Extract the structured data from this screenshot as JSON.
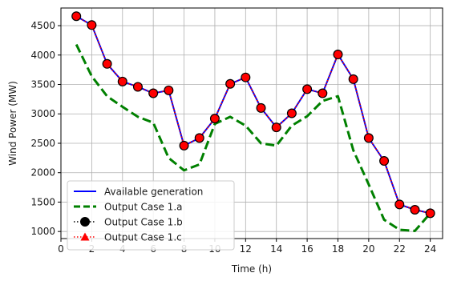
{
  "chart_data": {
    "type": "line",
    "xlabel": "Time (h)",
    "ylabel": "Wind Power (MW)",
    "xlim": [
      0,
      24.8
    ],
    "ylim": [
      880,
      4800
    ],
    "grid": true,
    "legend_position": "bottom-left",
    "x_ticks": [
      0,
      2,
      4,
      6,
      8,
      10,
      12,
      14,
      16,
      18,
      20,
      22,
      24
    ],
    "y_ticks": [
      1000,
      1500,
      2000,
      2500,
      3000,
      3500,
      4000,
      4500
    ],
    "x": [
      1,
      2,
      3,
      4,
      5,
      6,
      7,
      8,
      9,
      10,
      11,
      12,
      13,
      14,
      15,
      16,
      17,
      18,
      19,
      20,
      21,
      22,
      23,
      24
    ],
    "series": [
      {
        "name": "Available generation",
        "color": "#0000ff",
        "style": "solid",
        "marker": "none",
        "values": [
          4660,
          4510,
          3850,
          3550,
          3460,
          3350,
          3400,
          2460,
          2590,
          2920,
          3510,
          3620,
          3100,
          2770,
          3010,
          3420,
          3350,
          4010,
          3590,
          2590,
          2200,
          1460,
          1370,
          1310
        ]
      },
      {
        "name": "Output Case 1.a",
        "color": "#008000",
        "style": "dashed",
        "marker": "none",
        "values": [
          4180,
          3640,
          3300,
          3120,
          2950,
          2850,
          2250,
          2040,
          2140,
          2830,
          2950,
          2800,
          2500,
          2460,
          2800,
          2960,
          3220,
          3300,
          2380,
          1800,
          1200,
          1030,
          1010,
          1310
        ]
      },
      {
        "name": "Output Case 1.b",
        "color": "#000000",
        "style": "dotted",
        "marker": "circle",
        "values": [
          4660,
          4510,
          3850,
          3550,
          3460,
          3350,
          3400,
          2460,
          2590,
          2920,
          3510,
          3620,
          3100,
          2770,
          3010,
          3420,
          3350,
          4010,
          3590,
          2590,
          2200,
          1460,
          1370,
          1310
        ]
      },
      {
        "name": "Output Case 1.c",
        "color": "#ff0000",
        "style": "dotted",
        "marker": "triangle",
        "values": [
          4660,
          4510,
          3850,
          3550,
          3460,
          3350,
          3400,
          2460,
          2590,
          2920,
          3510,
          3620,
          3100,
          2770,
          3010,
          3420,
          3350,
          4010,
          3590,
          2590,
          2200,
          1460,
          1370,
          1310
        ]
      }
    ]
  }
}
